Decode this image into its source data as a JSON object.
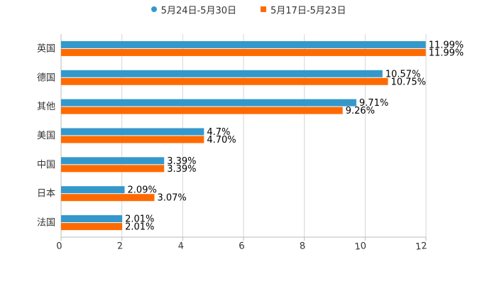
{
  "chart_data": {
    "type": "bar",
    "orientation": "horizontal",
    "title": "",
    "xlabel": "",
    "ylabel": "",
    "xlim": [
      0,
      12
    ],
    "x_ticks": [
      0,
      2,
      4,
      6,
      8,
      10,
      12
    ],
    "x_tick_labels": [
      "0",
      "2",
      "4",
      "6",
      "8",
      "10",
      "12"
    ],
    "grid": true,
    "legend_position": "top-center",
    "categories": [
      "英国",
      "德国",
      "其他",
      "美国",
      "中国",
      "日本",
      "法国"
    ],
    "series": [
      {
        "name": "5月24日-5月30日",
        "color": "#3498cb",
        "marker": "circle",
        "values": [
          11.99,
          10.57,
          9.71,
          4.7,
          3.39,
          2.09,
          2.01
        ],
        "labels": [
          "11.99%",
          "10.57%",
          "9.71%",
          "4.7%",
          "3.39%",
          "2.09%",
          "2.01%"
        ]
      },
      {
        "name": "5月17日-5月23日",
        "color": "#ff6a00",
        "marker": "square",
        "values": [
          11.99,
          10.75,
          9.26,
          4.7,
          3.39,
          3.07,
          2.01
        ],
        "labels": [
          "11.99%",
          "10.75%",
          "9.26%",
          "4.70%",
          "3.39%",
          "3.07%",
          "2.01%"
        ]
      }
    ]
  }
}
